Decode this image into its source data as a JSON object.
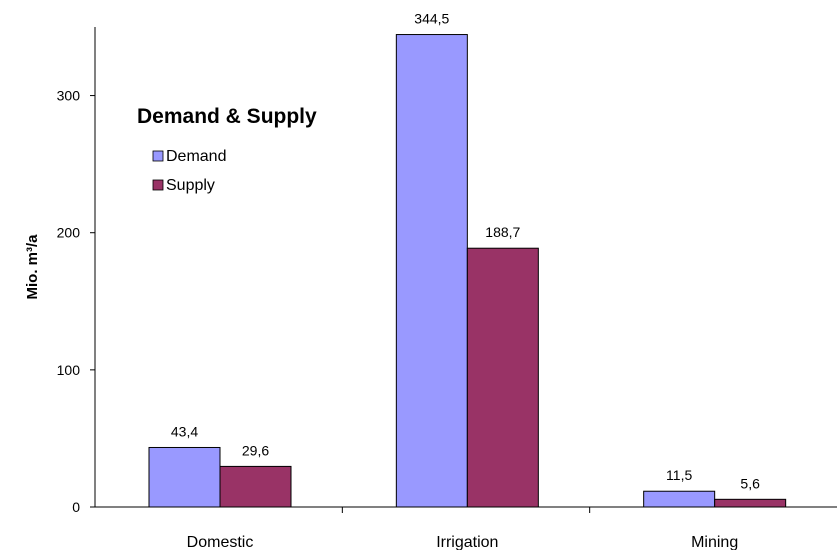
{
  "chart_data": {
    "type": "bar",
    "title": "Demand & Supply",
    "ylabel": "Mio. m³/a",
    "xlabel": "",
    "categories": [
      "Domestic",
      "Irrigation",
      "Mining"
    ],
    "series": [
      {
        "name": "Demand",
        "values": [
          43.4,
          344.5,
          11.5
        ],
        "labels": [
          "43,4",
          "344,5",
          "11,5"
        ],
        "color": "#9999FF"
      },
      {
        "name": "Supply",
        "values": [
          29.6,
          188.7,
          5.6
        ],
        "labels": [
          "29,6",
          "188,7",
          "5,6"
        ],
        "color": "#993366"
      }
    ],
    "ylim": [
      0,
      350
    ],
    "yticks": [
      0,
      100,
      200,
      300
    ],
    "grid": false,
    "legend_position": "top-left"
  }
}
